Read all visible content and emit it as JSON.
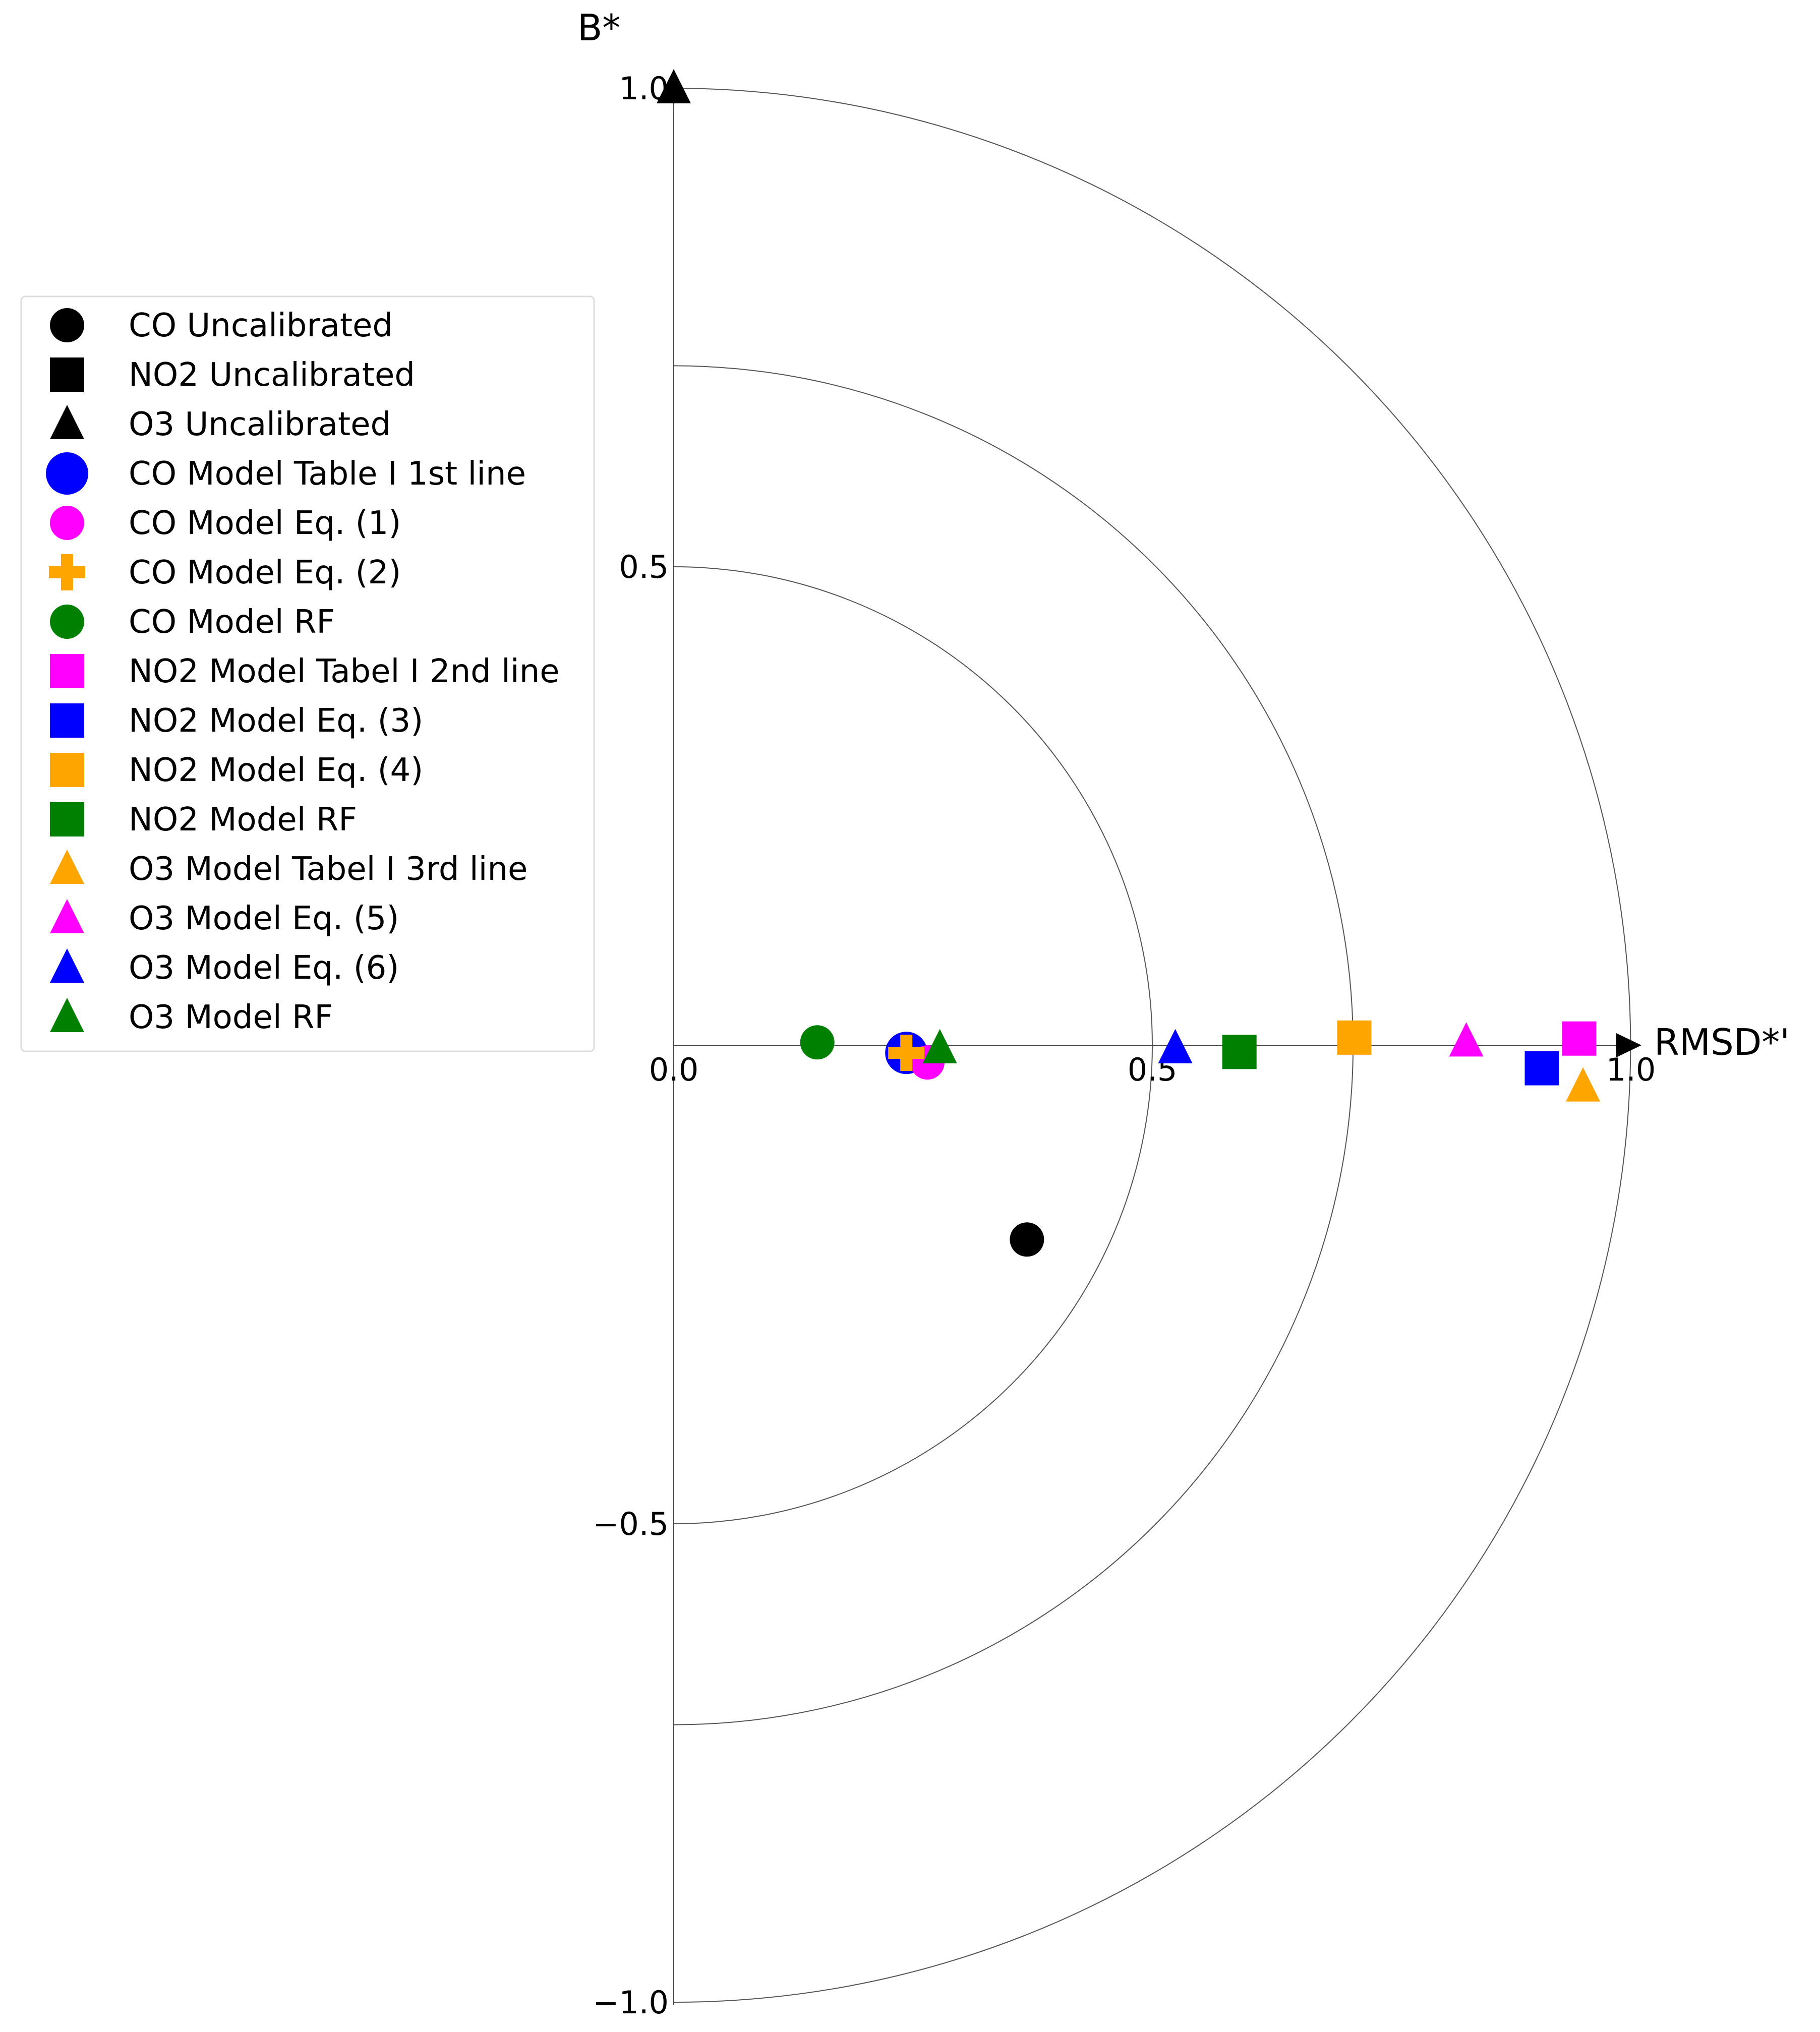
{
  "chart_data": {
    "type": "scatter",
    "title": "",
    "xlabel": "RMSD*'",
    "ylabel": "B*",
    "xlim": [
      0.0,
      1.0
    ],
    "ylim": [
      -1.0,
      1.0
    ],
    "x_ticks": [
      "0.0",
      "0.5",
      "1.0"
    ],
    "y_ticks": [
      "−1.0",
      "−0.5",
      "0.5",
      "1.0"
    ],
    "reference_arcs": [
      0.5,
      0.71,
      1.0
    ],
    "grid": true,
    "legend_position": "left",
    "series": [
      {
        "name": "CO Uncalibrated",
        "marker": "circle",
        "color": "#000000",
        "x": 0.369,
        "y": -0.203
      },
      {
        "name": "NO2 Uncalibrated",
        "marker": "square",
        "color": "#000000",
        "x": null,
        "y": null
      },
      {
        "name": "O3 Uncalibrated",
        "marker": "triangle",
        "color": "#000000",
        "x": 0.0,
        "y": 1.0
      },
      {
        "name": "CO Model Table I 1st line",
        "marker": "circle-large",
        "color": "#0000ff",
        "x": 0.243,
        "y": -0.008
      },
      {
        "name": "CO Model Eq. (1)",
        "marker": "circle",
        "color": "#ff00ff",
        "x": 0.265,
        "y": -0.018
      },
      {
        "name": "CO Model Eq. (2)",
        "marker": "plus",
        "color": "#ffa500",
        "x": 0.243,
        "y": -0.008
      },
      {
        "name": "CO Model RF",
        "marker": "circle",
        "color": "#008000",
        "x": 0.15,
        "y": 0.003
      },
      {
        "name": "NO2 Model Tabel I 2nd line",
        "marker": "square",
        "color": "#ff00ff",
        "x": 0.946,
        "y": 0.007
      },
      {
        "name": "NO2 Model Eq. (3)",
        "marker": "square",
        "color": "#0000ff",
        "x": 0.907,
        "y": -0.024
      },
      {
        "name": "NO2 Model Eq. (4)",
        "marker": "square",
        "color": "#ffa500",
        "x": 0.711,
        "y": 0.008
      },
      {
        "name": "NO2 Model RF",
        "marker": "square",
        "color": "#008000",
        "x": 0.591,
        "y": -0.007
      },
      {
        "name": "O3 Model Tabel I 3rd line",
        "marker": "triangle",
        "color": "#ffa500",
        "x": 0.95,
        "y": -0.043
      },
      {
        "name": "O3 Model Eq. (5)",
        "marker": "triangle",
        "color": "#ff00ff",
        "x": 0.828,
        "y": 0.004
      },
      {
        "name": "O3 Model Eq. (6)",
        "marker": "triangle",
        "color": "#0000ff",
        "x": 0.524,
        "y": -0.003
      },
      {
        "name": "O3 Model RF",
        "marker": "triangle",
        "color": "#008000",
        "x": 0.278,
        "y": -0.003
      }
    ]
  }
}
